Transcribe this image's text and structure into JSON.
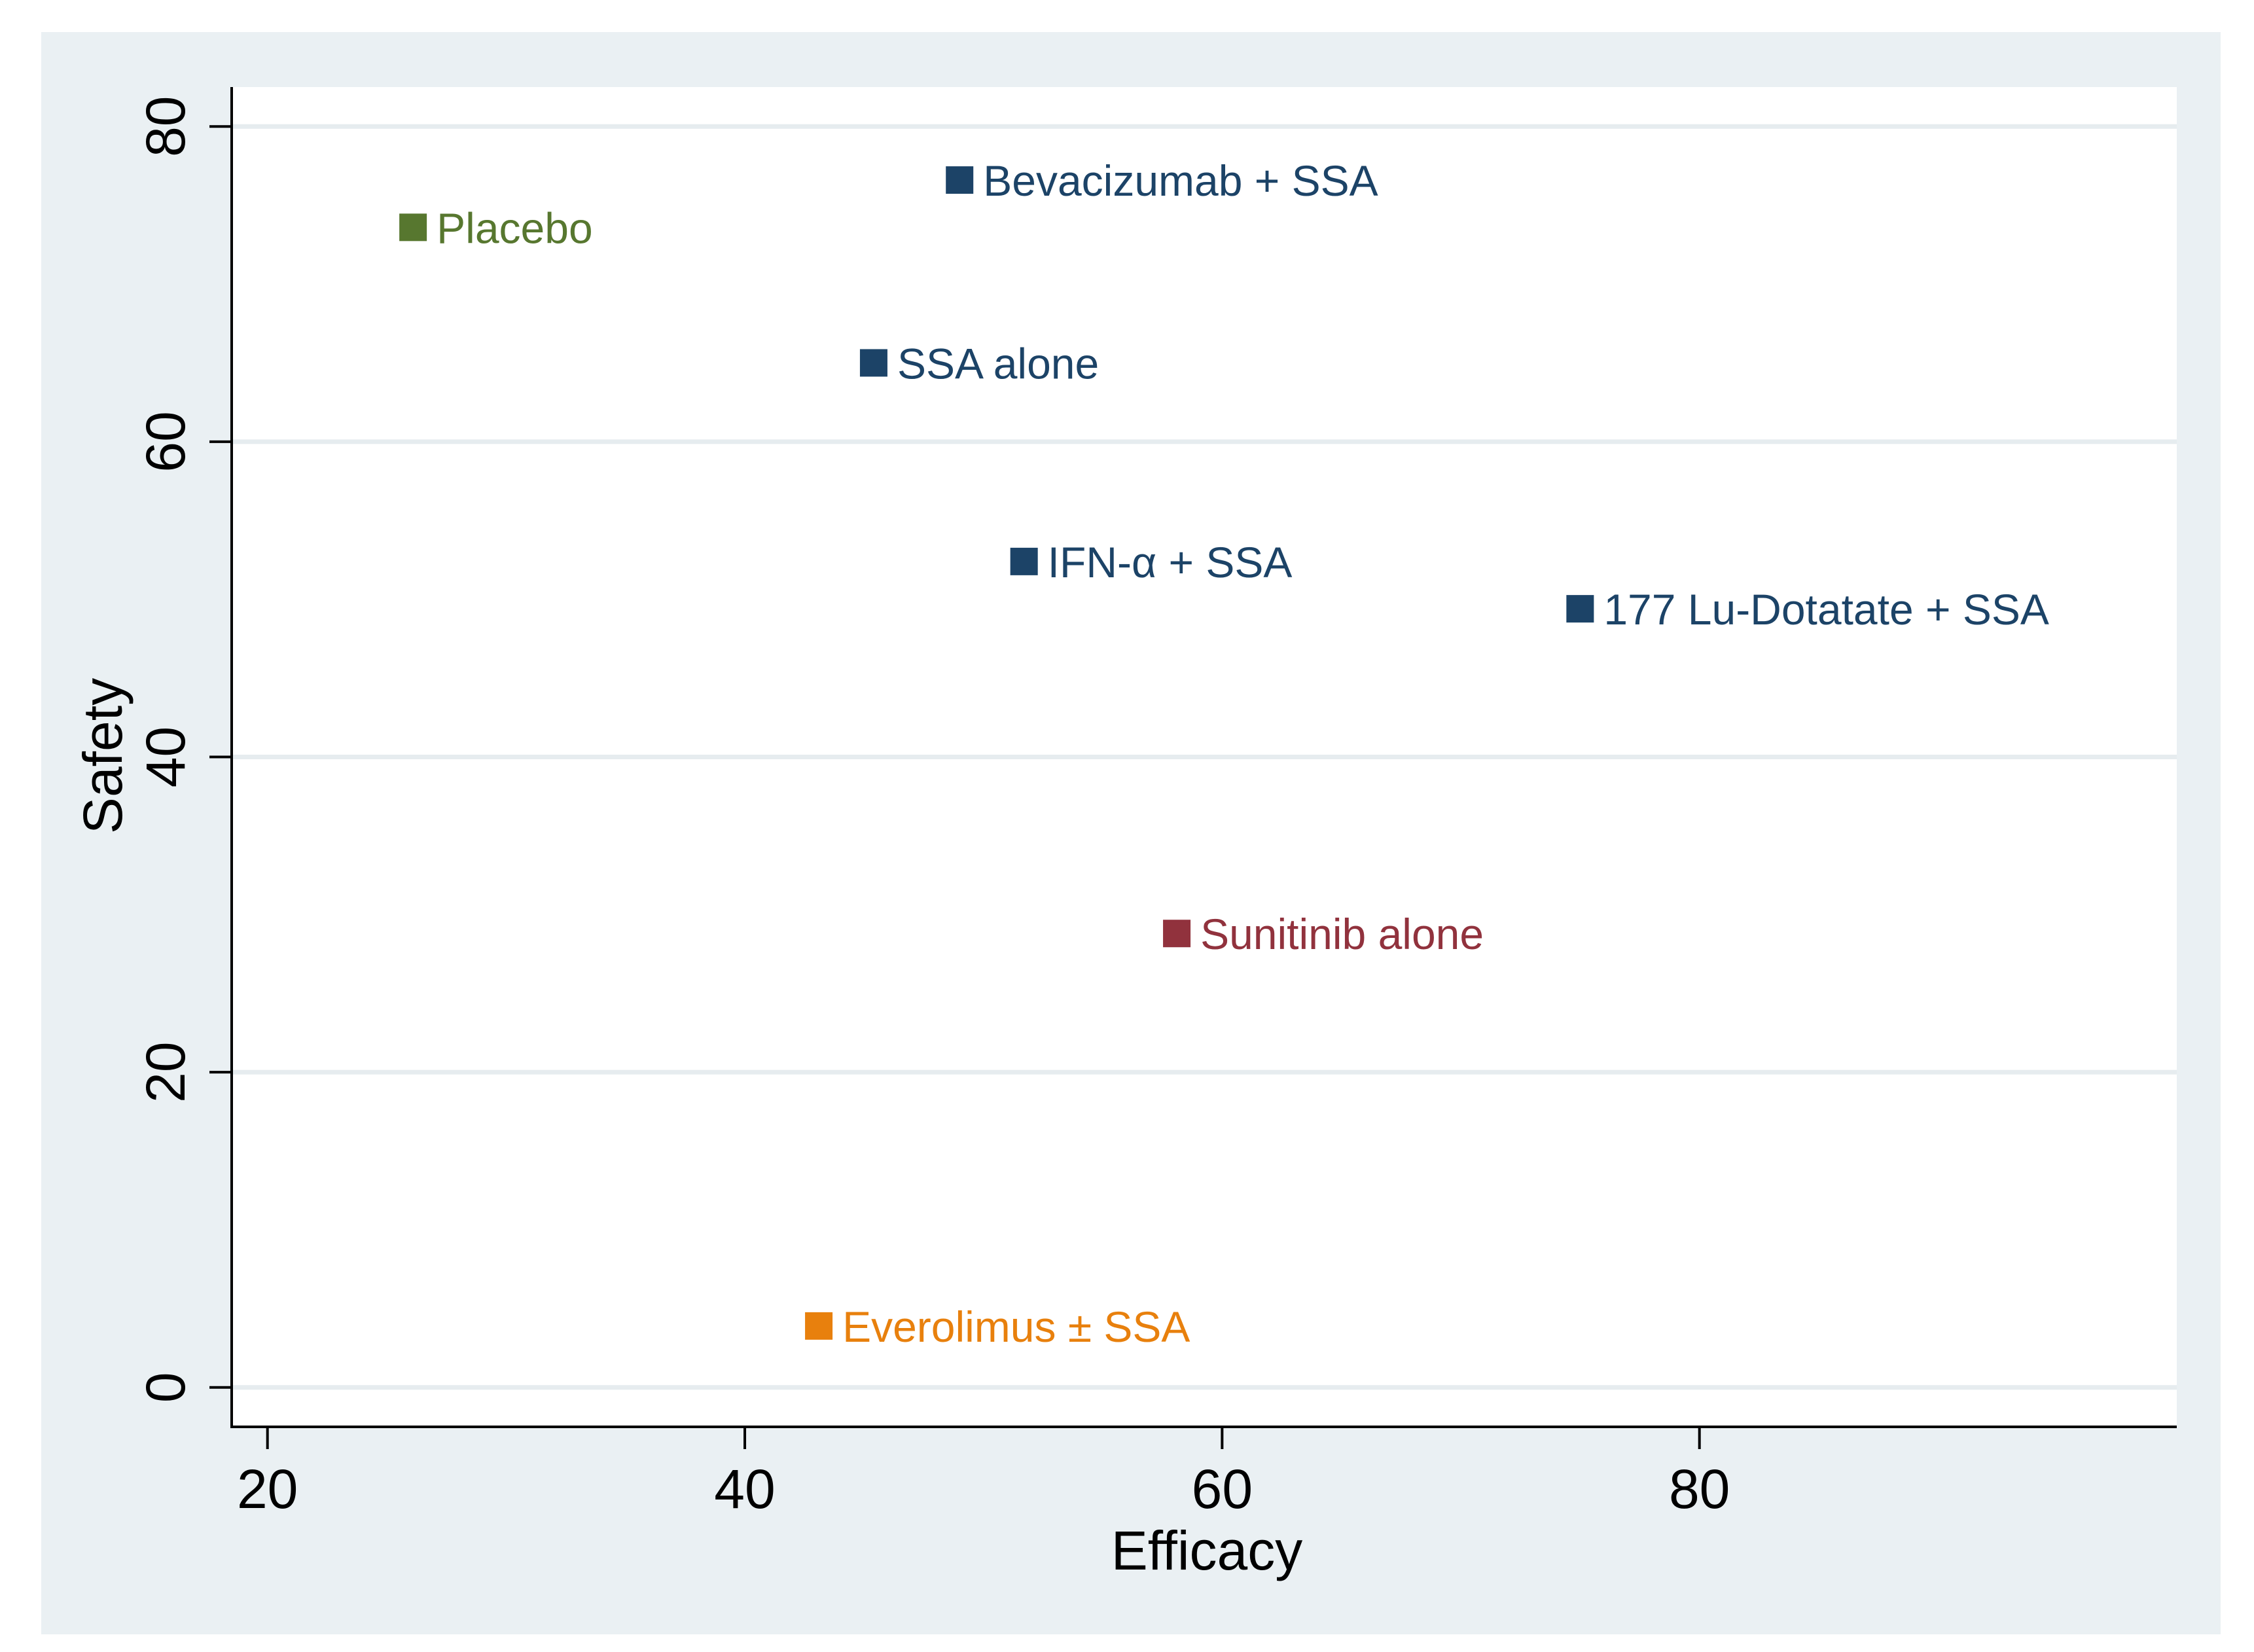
{
  "chart_data": {
    "type": "scatter",
    "title": "",
    "xlabel": "Efficacy",
    "ylabel": "Safety",
    "xlim": [
      18.5,
      100
    ],
    "ylim": [
      -2.5,
      82.5
    ],
    "xticks": [
      20,
      40,
      60,
      80
    ],
    "yticks": [
      0,
      20,
      40,
      60,
      80
    ],
    "grid": "horizontal",
    "legend": "none",
    "colors": {
      "outer_background": "#eaf0f3",
      "plot_background": "#ffffff",
      "gridline": "#e6ecef",
      "axis": "#000000"
    },
    "points": [
      {
        "label": "Placebo",
        "x": 26.1,
        "y": 73.6,
        "color": "#57772f"
      },
      {
        "label": "Bevacizumab + SSA",
        "x": 49.0,
        "y": 76.6,
        "color": "#1c4367"
      },
      {
        "label": "SSA alone",
        "x": 45.4,
        "y": 65.0,
        "color": "#1c4367"
      },
      {
        "label": "IFN-α + SSA",
        "x": 51.7,
        "y": 52.4,
        "color": "#1c4367"
      },
      {
        "label": "177 Lu-Dotatate + SSA",
        "x": 75.0,
        "y": 49.4,
        "color": "#1c4367"
      },
      {
        "label": "Sunitinib alone",
        "x": 58.1,
        "y": 28.8,
        "color": "#91323d"
      },
      {
        "label": "Everolimus ± SSA",
        "x": 43.1,
        "y": 3.9,
        "color": "#e8800d"
      }
    ]
  }
}
